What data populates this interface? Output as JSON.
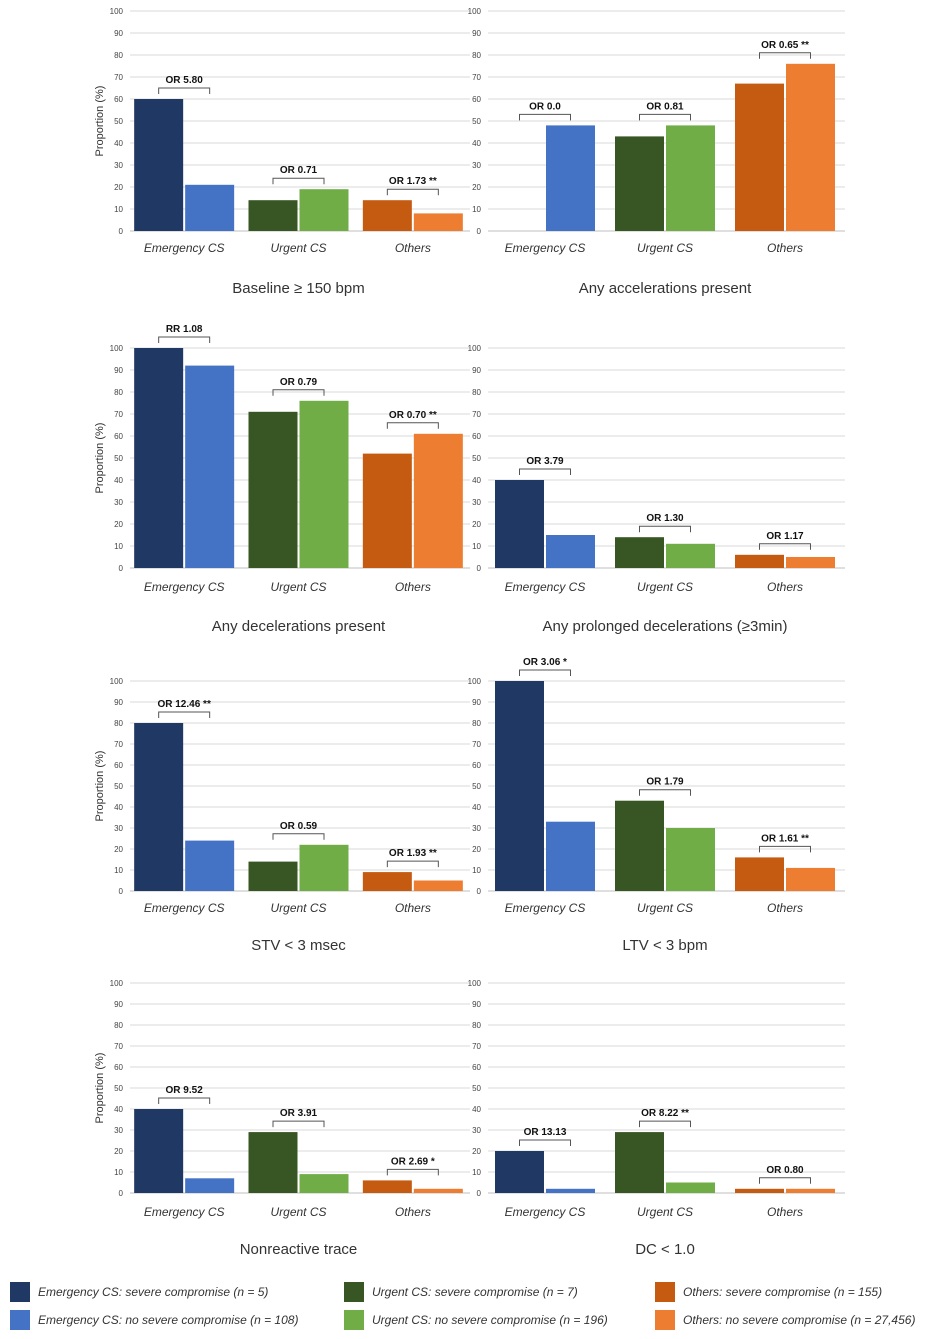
{
  "y_axis_label": "Proportion (%)",
  "y_ticks": [
    "0",
    "10",
    "20",
    "30",
    "40",
    "50",
    "60",
    "70",
    "80",
    "90",
    "100"
  ],
  "categories": [
    "Emergency CS",
    "Urgent CS",
    "Others"
  ],
  "series_colors": [
    "#1f3864",
    "#4472c4",
    "#375623",
    "#70ad47",
    "#c55a11",
    "#ed7d31"
  ],
  "chart_data": [
    {
      "type": "bar",
      "title": "Baseline ≥ 150 bpm",
      "ylabel": "Proportion (%)",
      "ylim": [
        0,
        100
      ],
      "categories": [
        "Emergency CS",
        "Urgent CS",
        "Others"
      ],
      "series": [
        {
          "name": "severe compromise",
          "values": [
            60,
            14,
            14
          ]
        },
        {
          "name": "no severe compromise",
          "values": [
            21,
            19,
            8
          ]
        }
      ],
      "annotations": [
        "OR 5.80",
        "OR 0.71",
        "OR 1.73 **"
      ]
    },
    {
      "type": "bar",
      "title": "Any accelerations present",
      "ylabel": "",
      "ylim": [
        0,
        100
      ],
      "categories": [
        "Emergency CS",
        "Urgent CS",
        "Others"
      ],
      "series": [
        {
          "name": "severe compromise",
          "values": [
            0,
            43,
            67
          ]
        },
        {
          "name": "no severe compromise",
          "values": [
            48,
            48,
            76
          ]
        }
      ],
      "annotations": [
        "OR 0.0",
        "OR 0.81",
        "OR 0.65 **"
      ]
    },
    {
      "type": "bar",
      "title": "Any decelerations present",
      "ylabel": "Proportion (%)",
      "ylim": [
        0,
        100
      ],
      "categories": [
        "Emergency CS",
        "Urgent CS",
        "Others"
      ],
      "series": [
        {
          "name": "severe compromise",
          "values": [
            100,
            71,
            52
          ]
        },
        {
          "name": "no severe compromise",
          "values": [
            92,
            76,
            61
          ]
        }
      ],
      "annotations": [
        "RR 1.08",
        "OR 0.79",
        "OR 0.70 **"
      ]
    },
    {
      "type": "bar",
      "title": "Any prolonged decelerations (≥3min)",
      "ylabel": "",
      "ylim": [
        0,
        100
      ],
      "categories": [
        "Emergency CS",
        "Urgent CS",
        "Others"
      ],
      "series": [
        {
          "name": "severe compromise",
          "values": [
            40,
            14,
            6
          ]
        },
        {
          "name": "no severe compromise",
          "values": [
            15,
            11,
            5
          ]
        }
      ],
      "annotations": [
        "OR 3.79",
        "OR 1.30",
        "OR 1.17"
      ]
    },
    {
      "type": "bar",
      "title": "STV < 3 msec",
      "ylabel": "Proportion (%)",
      "ylim": [
        0,
        100
      ],
      "categories": [
        "Emergency CS",
        "Urgent CS",
        "Others"
      ],
      "series": [
        {
          "name": "severe compromise",
          "values": [
            80,
            14,
            9
          ]
        },
        {
          "name": "no severe compromise",
          "values": [
            24,
            22,
            5
          ]
        }
      ],
      "annotations": [
        "OR 12.46 **",
        "OR 0.59",
        "OR 1.93 **"
      ]
    },
    {
      "type": "bar",
      "title": "LTV < 3 bpm",
      "ylabel": "",
      "ylim": [
        0,
        100
      ],
      "categories": [
        "Emergency CS",
        "Urgent CS",
        "Others"
      ],
      "series": [
        {
          "name": "severe compromise",
          "values": [
            100,
            43,
            16
          ]
        },
        {
          "name": "no severe compromise",
          "values": [
            33,
            30,
            11
          ]
        }
      ],
      "annotations": [
        "OR 3.06 *",
        "OR 1.79",
        "OR 1.61 **"
      ]
    },
    {
      "type": "bar",
      "title": "Nonreactive trace",
      "ylabel": "Proportion (%)",
      "ylim": [
        0,
        100
      ],
      "categories": [
        "Emergency CS",
        "Urgent CS",
        "Others"
      ],
      "series": [
        {
          "name": "severe compromise",
          "values": [
            40,
            29,
            6
          ]
        },
        {
          "name": "no severe compromise",
          "values": [
            7,
            9,
            2
          ]
        }
      ],
      "annotations": [
        "OR 9.52",
        "OR 3.91",
        "OR 2.69 *"
      ]
    },
    {
      "type": "bar",
      "title": "DC < 1.0",
      "ylabel": "",
      "ylim": [
        0,
        100
      ],
      "categories": [
        "Emergency CS",
        "Urgent CS",
        "Others"
      ],
      "series": [
        {
          "name": "severe compromise",
          "values": [
            20,
            29,
            2
          ]
        },
        {
          "name": "no severe compromise",
          "values": [
            2,
            5,
            2
          ]
        }
      ],
      "annotations": [
        "OR 13.13",
        "OR 8.22 **",
        "OR 0.80"
      ]
    }
  ],
  "legend": [
    {
      "label": "Emergency CS: severe compromise (n = 5)",
      "color": "#1f3864"
    },
    {
      "label": "Emergency CS: no severe compromise (n = 108)",
      "color": "#4472c4"
    },
    {
      "label": "Urgent CS: severe compromise (n = 7)",
      "color": "#375623"
    },
    {
      "label": "Urgent CS: no severe compromise (n = 196)",
      "color": "#70ad47"
    },
    {
      "label": "Others: severe compromise (n = 155)",
      "color": "#c55a11"
    },
    {
      "label": "Others: no severe compromise (n = 27,456)",
      "color": "#ed7d31"
    }
  ]
}
